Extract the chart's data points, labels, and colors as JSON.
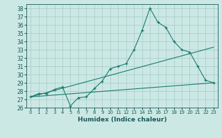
{
  "xlabel": "Humidex (Indice chaleur)",
  "bg_color": "#cce8e5",
  "grid_color": "#aacfcc",
  "line_color": "#1a7a6e",
  "xlim": [
    -0.5,
    23.5
  ],
  "ylim": [
    26,
    38.5
  ],
  "yticks": [
    26,
    27,
    28,
    29,
    30,
    31,
    32,
    33,
    34,
    35,
    36,
    37,
    38
  ],
  "xticks": [
    0,
    1,
    2,
    3,
    4,
    5,
    6,
    7,
    8,
    9,
    10,
    11,
    12,
    13,
    14,
    15,
    16,
    17,
    18,
    19,
    20,
    21,
    22,
    23
  ],
  "series1_x": [
    0,
    1,
    2,
    3,
    4,
    5,
    6,
    7,
    8,
    9,
    10,
    11,
    12,
    13,
    14,
    15,
    16,
    17,
    18,
    19,
    20,
    21,
    22,
    23
  ],
  "series1_y": [
    27.3,
    27.7,
    27.7,
    28.2,
    28.5,
    26.2,
    27.2,
    27.3,
    28.3,
    29.2,
    30.7,
    31.0,
    31.3,
    33.0,
    35.3,
    38.0,
    36.3,
    35.7,
    34.0,
    33.0,
    32.7,
    31.0,
    29.3,
    29.0
  ],
  "series2_x": [
    0,
    23
  ],
  "series2_y": [
    27.3,
    33.3
  ],
  "series3_x": [
    0,
    23
  ],
  "series3_y": [
    27.3,
    29.0
  ]
}
